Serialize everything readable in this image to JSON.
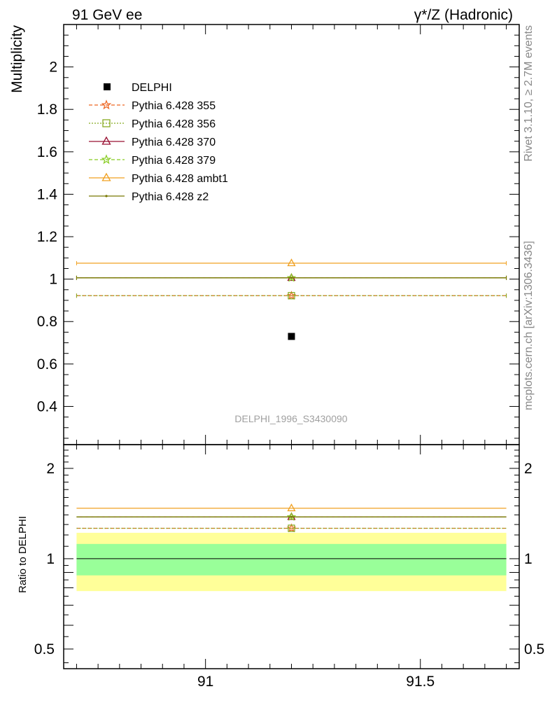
{
  "header": {
    "left": "91 GeV ee",
    "right": "γ*/Z (Hadronic)"
  },
  "side_text": {
    "top": "Rivet 3.1.10, ≥ 2.7M events",
    "bottom": "mcplots.cern.ch [arXiv:1306.3436]"
  },
  "chart_data": {
    "type": "scatter",
    "analysis_label": "DELPHI_1996_S3430090",
    "x_range": [
      90.67,
      91.73
    ],
    "x_bin": [
      90.7,
      91.7
    ],
    "x_ticks": [
      91,
      91.5
    ],
    "x_tick_labels": [
      "91",
      "91.5"
    ],
    "main": {
      "ylabel": "Multiplicity",
      "ylim": [
        0.22,
        2.2
      ],
      "y_ticks": [
        0.4,
        0.6,
        0.8,
        1,
        1.2,
        1.4,
        1.6,
        1.8,
        2
      ],
      "y_tick_labels": [
        "0.4",
        "0.6",
        "0.8",
        "1",
        "1.2",
        "1.4",
        "1.6",
        "1.8",
        "2"
      ],
      "data": {
        "name": "DELPHI",
        "x": 91.2,
        "y": 0.73,
        "color": "#000000"
      }
    },
    "ratio": {
      "ylabel": "Ratio to DELPHI",
      "scale": "log",
      "ylim": [
        0.43,
        2.4
      ],
      "y_ticks": [
        0.5,
        1,
        2
      ],
      "y_tick_labels": [
        "0.5",
        "1",
        "2"
      ],
      "band_inner": [
        0.88,
        1.12
      ],
      "band_outer": [
        0.78,
        1.22
      ],
      "band_inner_color": "#99ff99",
      "band_outer_color": "#ffff99"
    },
    "series": [
      {
        "name": "Pythia 6.428 355",
        "y": 0.922,
        "ratio": 1.263,
        "color": "#ee6622",
        "dash": "5,3",
        "marker": "star"
      },
      {
        "name": "Pythia 6.428 356",
        "y": 0.922,
        "ratio": 1.263,
        "color": "#88aa22",
        "dash": "2,2",
        "marker": "square"
      },
      {
        "name": "Pythia 6.428 370",
        "y": 1.006,
        "ratio": 1.378,
        "color": "#991133",
        "dash": "",
        "marker": "triangle"
      },
      {
        "name": "Pythia 6.428 379",
        "y": 1.006,
        "ratio": 1.378,
        "color": "#88cc22",
        "dash": "5,3",
        "marker": "star"
      },
      {
        "name": "Pythia 6.428 ambt1",
        "y": 1.075,
        "ratio": 1.473,
        "color": "#f0a020",
        "dash": "",
        "marker": "triangle"
      },
      {
        "name": "Pythia 6.428 z2",
        "y": 1.006,
        "ratio": 1.378,
        "color": "#777700",
        "dash": "",
        "marker": "dot"
      }
    ]
  }
}
